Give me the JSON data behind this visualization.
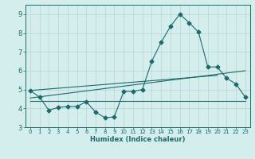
{
  "xlabel": "Humidex (Indice chaleur)",
  "bg_color": "#d4eeed",
  "grid_color": "#b8d4d2",
  "line_color": "#1a6b6b",
  "xlim": [
    -0.5,
    23.5
  ],
  "ylim": [
    3.0,
    9.5
  ],
  "xticks": [
    0,
    1,
    2,
    3,
    4,
    5,
    6,
    7,
    8,
    9,
    10,
    11,
    12,
    13,
    14,
    15,
    16,
    17,
    18,
    19,
    20,
    21,
    22,
    23
  ],
  "yticks": [
    3,
    4,
    5,
    6,
    7,
    8,
    9
  ],
  "series1_x": [
    0,
    1,
    2,
    3,
    4,
    5,
    6,
    7,
    8,
    9,
    10,
    11,
    12,
    13,
    14,
    15,
    16,
    17,
    18,
    19,
    20,
    21,
    22,
    23
  ],
  "series1_y": [
    4.95,
    4.6,
    3.9,
    4.05,
    4.1,
    4.1,
    4.35,
    3.8,
    3.5,
    3.55,
    4.9,
    4.9,
    5.0,
    6.5,
    7.5,
    8.35,
    9.0,
    8.55,
    8.05,
    6.2,
    6.2,
    5.6,
    5.3,
    4.6
  ],
  "trend1_x": [
    0,
    23
  ],
  "trend1_y": [
    4.4,
    4.4
  ],
  "trend2_x": [
    0,
    23
  ],
  "trend2_y": [
    4.55,
    6.0
  ],
  "trend3_x": [
    0,
    20
  ],
  "trend3_y": [
    4.95,
    5.75
  ]
}
